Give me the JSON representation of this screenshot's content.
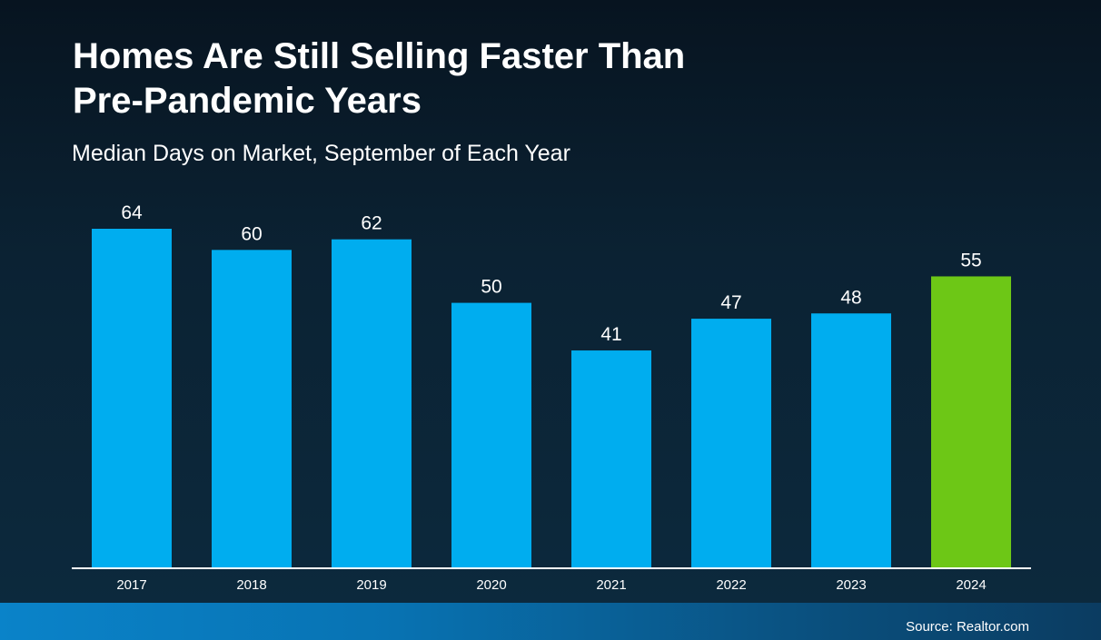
{
  "header": {
    "title_line1": "Homes Are Still Selling Faster Than",
    "title_line2": "Pre-Pandemic Years",
    "subtitle": "Median Days on Market, September of Each Year"
  },
  "footer": {
    "source": "Source: Realtor.com"
  },
  "colors": {
    "bar_default": "#00adef",
    "bar_highlight": "#6dc716",
    "axis_line": "#ffffff",
    "text": "#ffffff"
  },
  "chart_data": {
    "type": "bar",
    "title": "Homes Are Still Selling Faster Than Pre-Pandemic Years",
    "subtitle": "Median Days on Market, September of Each Year",
    "categories": [
      "2017",
      "2018",
      "2019",
      "2020",
      "2021",
      "2022",
      "2023",
      "2024"
    ],
    "values": [
      64,
      60,
      62,
      50,
      41,
      47,
      48,
      55
    ],
    "highlight_index": 7,
    "xlabel": "",
    "ylabel": "",
    "ylim": [
      0,
      64
    ],
    "grid": false,
    "legend": "none",
    "data_labels": true
  }
}
